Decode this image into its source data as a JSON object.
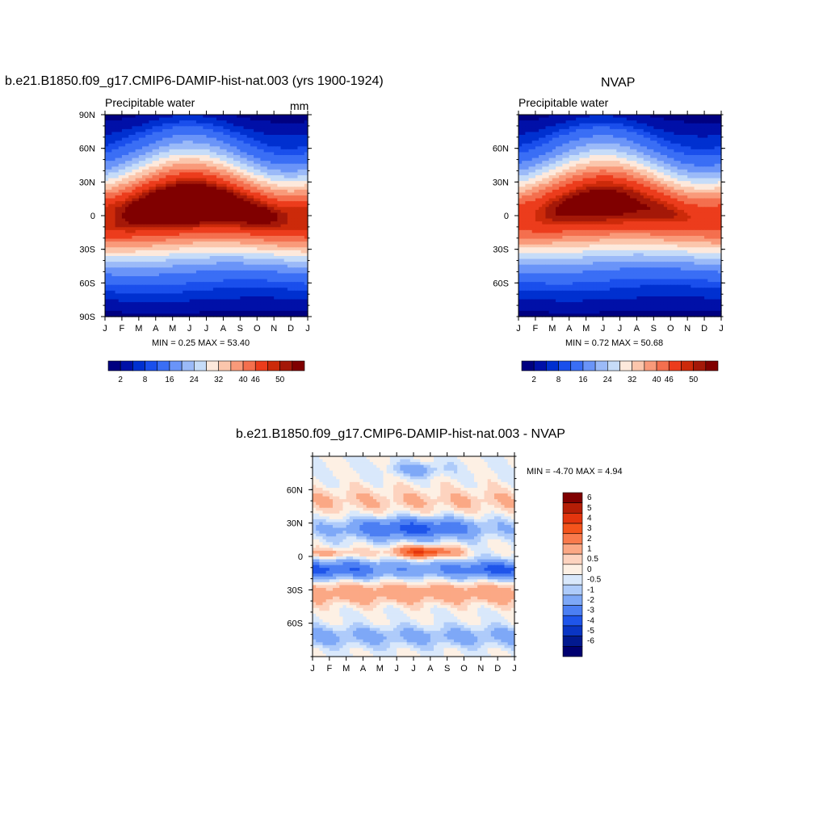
{
  "chart_data": [
    {
      "type": "heatmap",
      "title": "b.e21.B1850.f09_g17.CMIP6-DAMIP-hist-nat.003 (yrs 1900-1924)",
      "subtitle": "Precipitable water",
      "units": "mm",
      "x_ticks": [
        "J",
        "F",
        "M",
        "A",
        "M",
        "J",
        "J",
        "A",
        "S",
        "O",
        "N",
        "D",
        "J"
      ],
      "y_ticks": [
        "90N",
        "60N",
        "30N",
        "0",
        "30S",
        "60S",
        "90S"
      ],
      "ylim": [
        -90,
        90
      ],
      "stats": "MIN =   0.25 MAX =  53.40",
      "colorbar_labels": [
        "2",
        "8",
        "16",
        "24",
        "32",
        "40",
        "46",
        "50"
      ],
      "colorbar_colors": [
        "#000080",
        "#0010a8",
        "#0030d0",
        "#1a4fec",
        "#3a6ef5",
        "#6a94f8",
        "#9bbaf8",
        "#c6dcf8",
        "#fde9dc",
        "#fbc6ac",
        "#f99a7a",
        "#f46f4e",
        "#ec3c1c",
        "#cc2a0a",
        "#a41808",
        "#800000"
      ],
      "series": [
        {
          "lat_n_by_month": [
            9,
            9,
            10,
            12,
            15,
            20,
            24,
            22,
            18,
            14,
            11,
            9,
            9
          ]
        },
        {
          "lat_s_by_month": [
            -7,
            -7,
            -6,
            -4,
            -2,
            0,
            2,
            2,
            0,
            -2,
            -4,
            -6,
            -7
          ]
        }
      ]
    },
    {
      "type": "heatmap",
      "title": "NVAP",
      "subtitle": "Precipitable water",
      "x_ticks": [
        "J",
        "F",
        "M",
        "A",
        "M",
        "J",
        "J",
        "A",
        "S",
        "O",
        "N",
        "D",
        "J"
      ],
      "y_ticks": [
        "60N",
        "30N",
        "0",
        "30S",
        "60S"
      ],
      "ylim": [
        -90,
        90
      ],
      "stats": "MIN =   0.72 MAX =  50.68",
      "colorbar_labels": [
        "2",
        "8",
        "16",
        "24",
        "32",
        "40",
        "46",
        "50"
      ],
      "colorbar_colors": [
        "#000080",
        "#0010a8",
        "#0030d0",
        "#1a4fec",
        "#3a6ef5",
        "#6a94f8",
        "#9bbaf8",
        "#c6dcf8",
        "#fde9dc",
        "#fbc6ac",
        "#f99a7a",
        "#f46f4e",
        "#ec3c1c",
        "#cc2a0a",
        "#a41808",
        "#800000"
      ]
    },
    {
      "type": "heatmap",
      "title": "b.e21.B1850.f09_g17.CMIP6-DAMIP-hist-nat.003 - NVAP",
      "x_ticks": [
        "J",
        "F",
        "M",
        "A",
        "M",
        "J",
        "J",
        "A",
        "S",
        "O",
        "N",
        "D",
        "J"
      ],
      "y_ticks": [
        "60N",
        "30N",
        "0",
        "30S",
        "60S"
      ],
      "ylim": [
        -90,
        90
      ],
      "stats": "MIN =  -4.70 MAX =   4.94",
      "colorbar_labels": [
        "6",
        "5",
        "4",
        "3",
        "2",
        "1",
        "0.5",
        "0",
        "-0.5",
        "-1",
        "-2",
        "-3",
        "-4",
        "-5",
        "-6"
      ],
      "colorbar_colors": [
        "#800000",
        "#b51e06",
        "#e3350e",
        "#f4541c",
        "#f97a4c",
        "#fba885",
        "#fdd3bf",
        "#fdf0e4",
        "#d9e8fb",
        "#aecbfa",
        "#7ea8f7",
        "#4c7ff3",
        "#1f55ea",
        "#0a35c4",
        "#02198f",
        "#000070"
      ]
    }
  ]
}
